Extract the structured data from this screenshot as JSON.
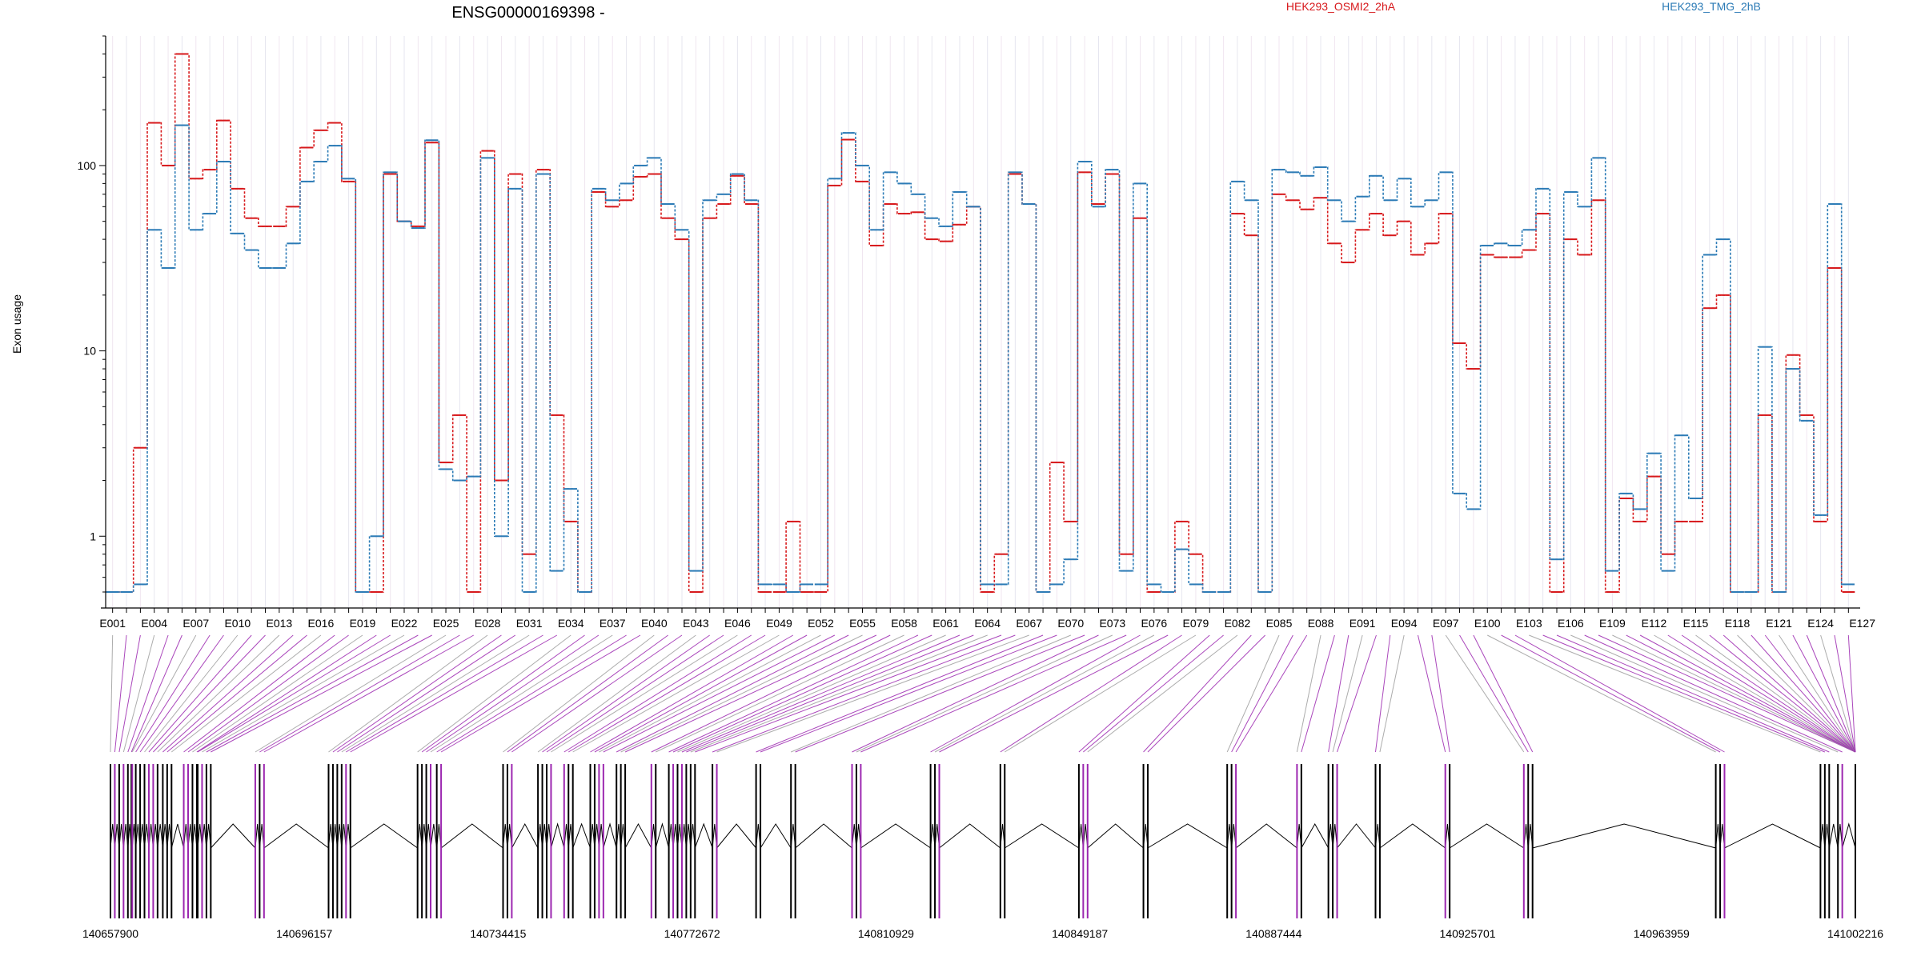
{
  "chart_data": {
    "type": "line",
    "title": "ENSG00000169398 -",
    "ylabel": "Exon usage",
    "yscale": "log",
    "ylim": [
      0.5,
      500
    ],
    "y_ticks": [
      1,
      10,
      100
    ],
    "y_tick_labels": [
      "1",
      "10",
      "100"
    ],
    "series": [
      {
        "name": "HEK293_OSMI2_2hA",
        "color": "#d7191c",
        "values": [
          0.5,
          0.5,
          3,
          170,
          100,
          400,
          85,
          95,
          175,
          75,
          52,
          47,
          47,
          60,
          125,
          155,
          170,
          82,
          0.5,
          0.5,
          90,
          50,
          47,
          133,
          2.5,
          4.5,
          0.5,
          120,
          2,
          90,
          0.8,
          95,
          4.5,
          1.2,
          0.5,
          72,
          60,
          65,
          87,
          90,
          52,
          40,
          0.5,
          52,
          62,
          88,
          62,
          0.5,
          0.5,
          1.2,
          0.5,
          0.5,
          78,
          138,
          82,
          37,
          62,
          55,
          56,
          40,
          39,
          48,
          60,
          0.5,
          0.8,
          90,
          62,
          0.5,
          2.5,
          1.2,
          92,
          62,
          90,
          0.8,
          52,
          0.5,
          0.5,
          1.2,
          0.8,
          0.5,
          0.5,
          55,
          42,
          0.5,
          70,
          65,
          58,
          67,
          38,
          30,
          45,
          55,
          42,
          50,
          33,
          38,
          55,
          11,
          8,
          33,
          32,
          32,
          35,
          55,
          0.5,
          40,
          33,
          65,
          0.5,
          1.6,
          1.2,
          2.1,
          0.8,
          1.2,
          1.2,
          17,
          20,
          0.5,
          0.5,
          4.5,
          0.5,
          9.5,
          4.5,
          1.2,
          28,
          0.5
        ]
      },
      {
        "name": "HEK293_TMG_2hB",
        "color": "#2c7bb6",
        "values": [
          0.5,
          0.5,
          0.55,
          45,
          28,
          165,
          45,
          55,
          105,
          43,
          35,
          28,
          28,
          38,
          82,
          105,
          128,
          85,
          0.5,
          1,
          92,
          50,
          46,
          137,
          2.3,
          2,
          2.1,
          110,
          1,
          75,
          0.5,
          90,
          0.65,
          1.8,
          0.5,
          75,
          65,
          80,
          100,
          110,
          62,
          45,
          0.65,
          65,
          70,
          90,
          65,
          0.55,
          0.55,
          0.5,
          0.55,
          0.55,
          85,
          150,
          100,
          45,
          92,
          80,
          70,
          52,
          47,
          72,
          60,
          0.55,
          0.55,
          92,
          62,
          0.5,
          0.55,
          0.75,
          105,
          60,
          95,
          0.65,
          80,
          0.55,
          0.5,
          0.85,
          0.55,
          0.5,
          0.5,
          82,
          65,
          0.5,
          95,
          92,
          88,
          98,
          65,
          50,
          68,
          88,
          65,
          85,
          60,
          65,
          92,
          1.7,
          1.4,
          37,
          38,
          37,
          45,
          75,
          0.75,
          72,
          60,
          110,
          0.65,
          1.7,
          1.4,
          2.8,
          0.65,
          3.5,
          1.6,
          33,
          40,
          0.5,
          0.5,
          10.5,
          0.5,
          8,
          4.2,
          1.3,
          62,
          0.55
        ]
      }
    ],
    "x_tick_labels": [
      "E001",
      "E004",
      "E007",
      "E010",
      "E013",
      "E016",
      "E019",
      "E022",
      "E025",
      "E028",
      "E031",
      "E034",
      "E037",
      "E040",
      "E043",
      "E046",
      "E049",
      "E052",
      "E055",
      "E058",
      "E061",
      "E064",
      "E067",
      "E070",
      "E073",
      "E076",
      "E079",
      "E082",
      "E085",
      "E088",
      "E091",
      "E094",
      "E097",
      "E100",
      "E103",
      "E106",
      "E109",
      "E112",
      "E115",
      "E118",
      "E121",
      "E124",
      "E127"
    ],
    "genomic_ticks": [
      "140657900",
      "140696157",
      "140734415",
      "140772672",
      "140810929",
      "140849187",
      "140887444",
      "140925701",
      "140963959",
      "141002216"
    ],
    "genomic_range": [
      140657900,
      141002216
    ],
    "highlight_color": "#9c27b0"
  }
}
